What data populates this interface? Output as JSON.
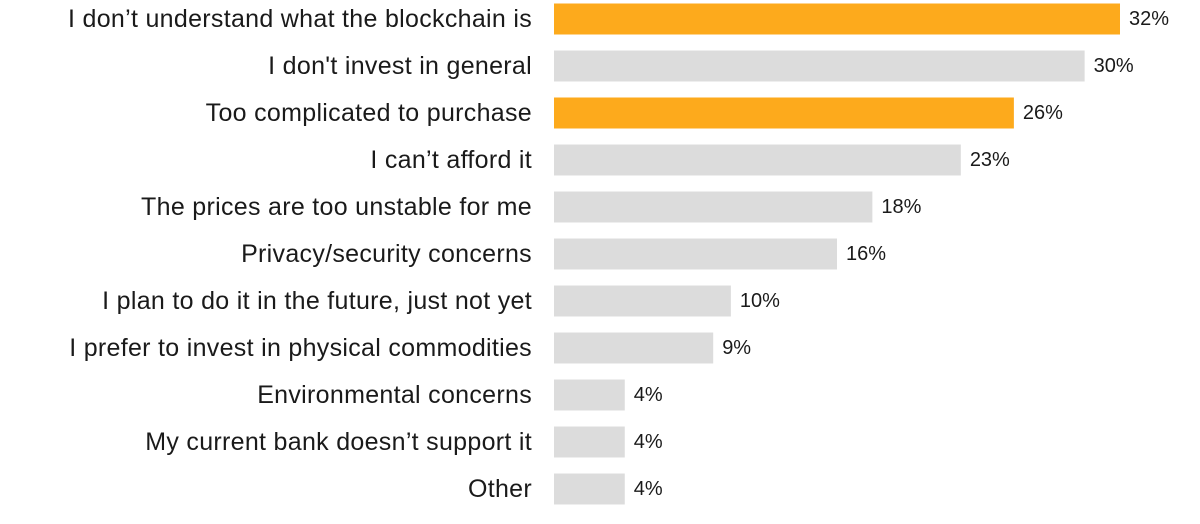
{
  "chart_data": {
    "type": "bar",
    "orientation": "horizontal",
    "title": "",
    "xlabel": "",
    "ylabel": "",
    "categories": [
      "I don’t understand what the blockchain is",
      "I don't invest in general",
      "Too complicated to purchase",
      "I can’t afford it",
      "The prices are too unstable for me",
      "Privacy/security concerns",
      "I plan to do it in the future, just not yet",
      "I prefer to invest in physical commodities",
      "Environmental concerns",
      "My current bank doesn’t support it",
      "Other"
    ],
    "values": [
      32,
      30,
      26,
      23,
      18,
      16,
      10,
      9,
      4,
      4,
      4
    ],
    "value_labels": [
      "32%",
      "30%",
      "26%",
      "23%",
      "18%",
      "16%",
      "10%",
      "9%",
      "4%",
      "4%",
      "4%"
    ],
    "highlighted": [
      true,
      false,
      true,
      false,
      false,
      false,
      false,
      false,
      false,
      false,
      false
    ],
    "xlim": [
      0,
      32
    ],
    "grid": false,
    "legend": "none",
    "colors": {
      "highlight": "#FDAA1C",
      "default": "#DCDCDC",
      "text": "#1A1A1A"
    }
  }
}
